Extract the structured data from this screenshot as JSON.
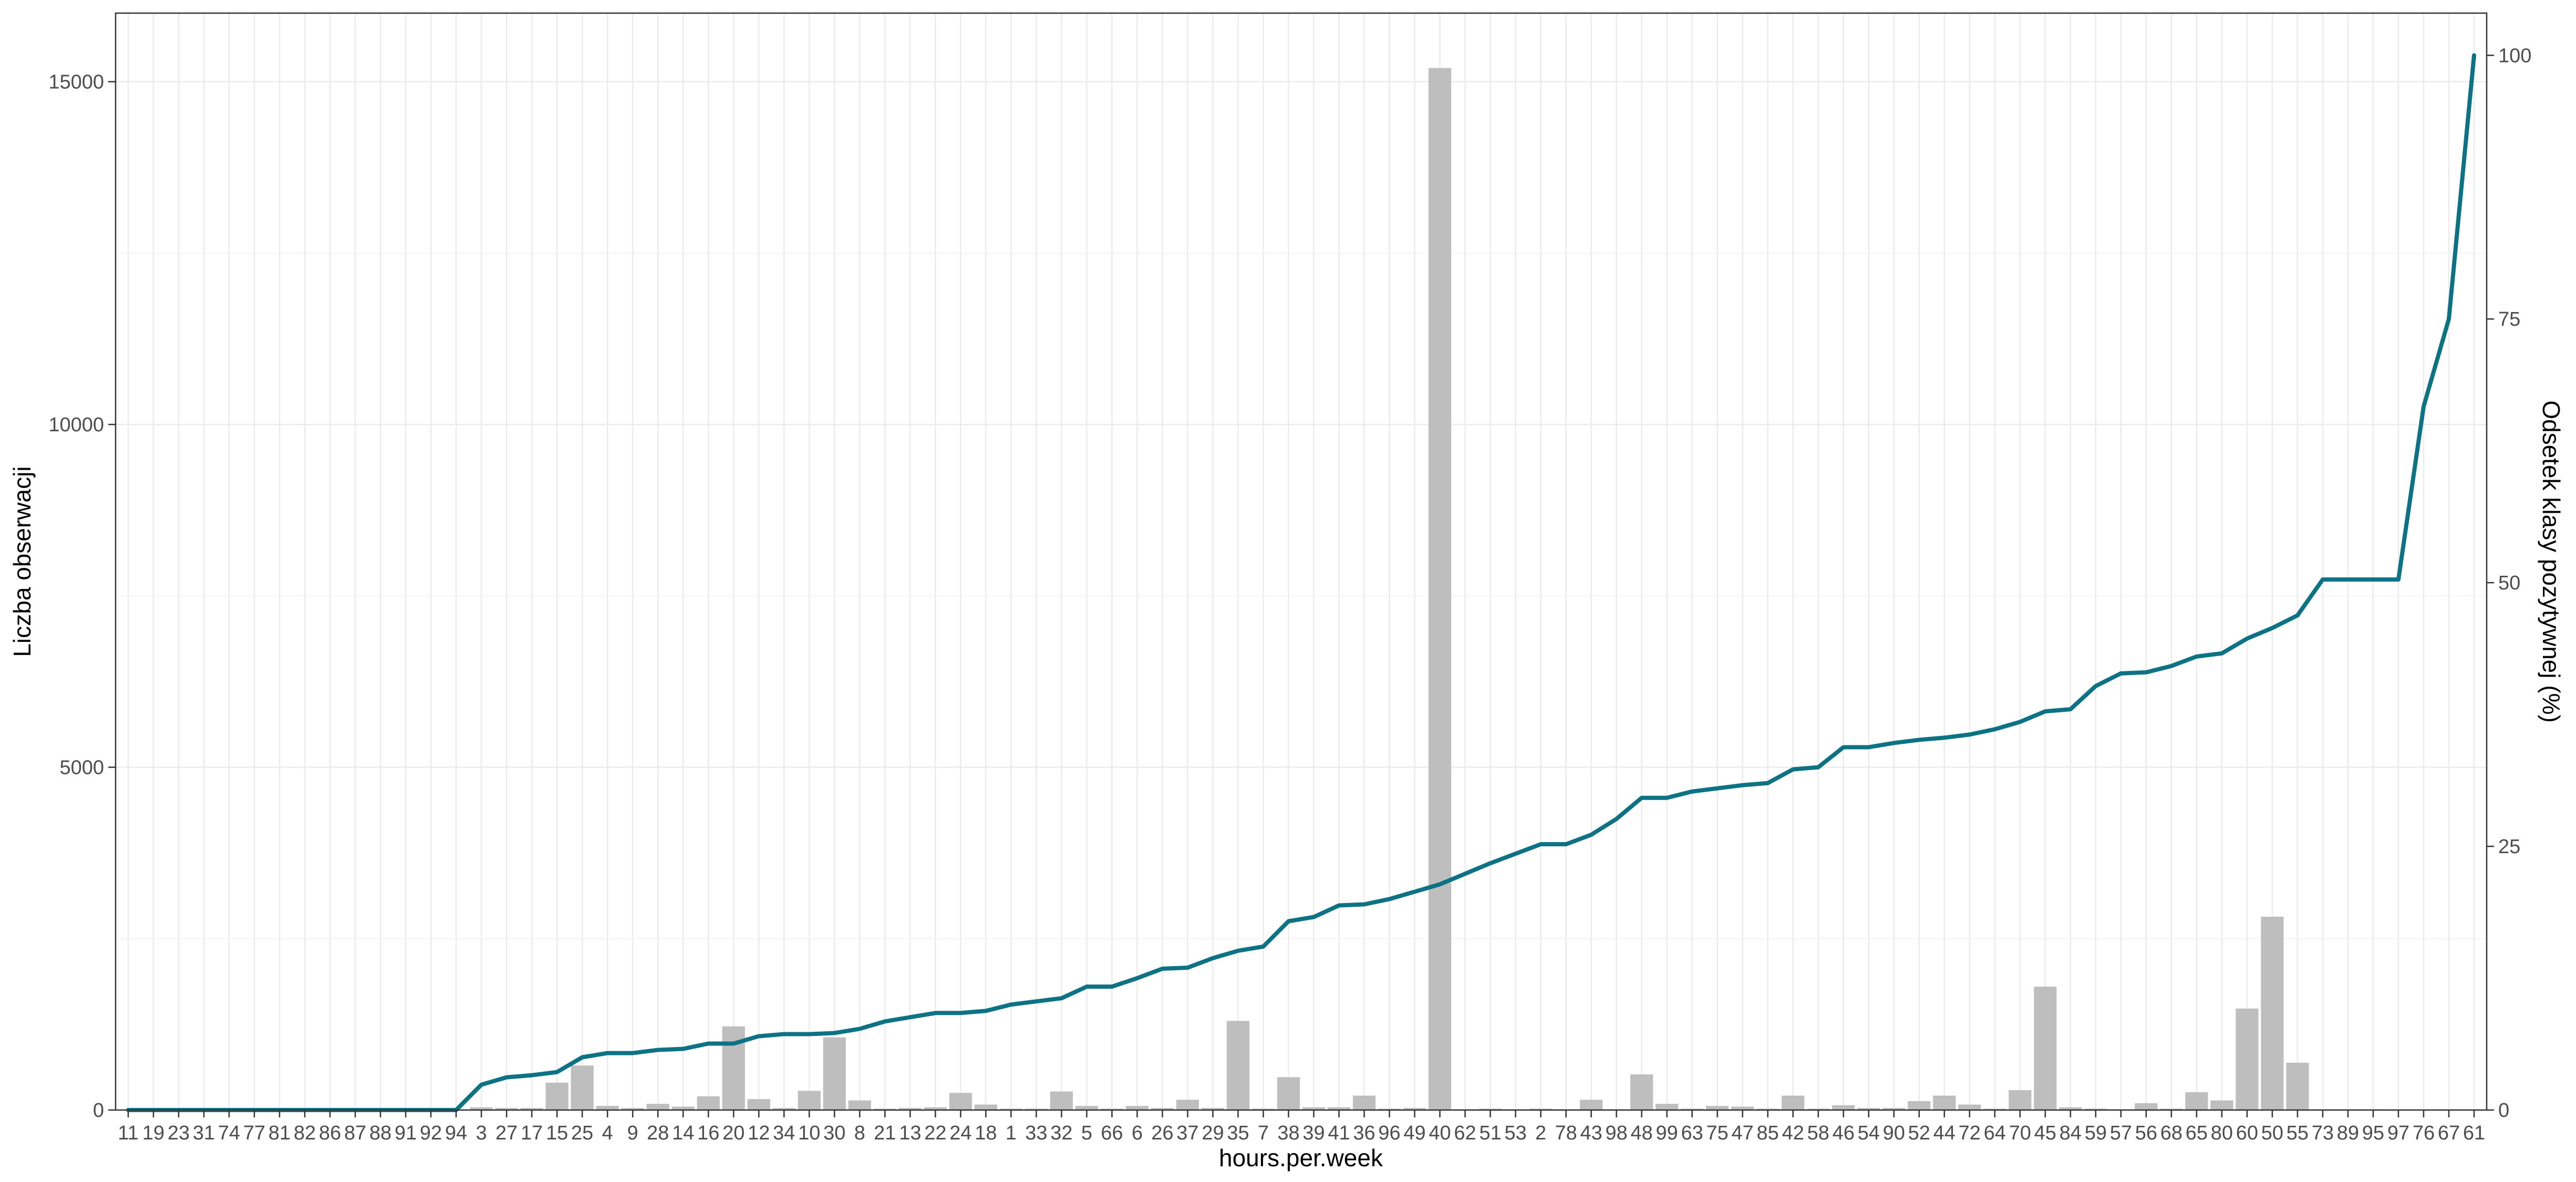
{
  "chart_data": {
    "type": "bar",
    "xlabel": "hours.per.week",
    "ylabel_left": "Liczba obserwacji",
    "ylabel_right": "Odsetek klasy pozytywnej (%)",
    "ylim_left": [
      0,
      16000
    ],
    "ylim_right": [
      0,
      104
    ],
    "yticks_left": [
      0,
      5000,
      10000,
      15000
    ],
    "yticks_right": [
      0,
      25,
      50,
      75,
      100
    ],
    "grid": true,
    "colors": {
      "bars": "#bebebe",
      "line": "#0e7285"
    },
    "categories": [
      "11",
      "19",
      "23",
      "31",
      "74",
      "77",
      "81",
      "82",
      "86",
      "87",
      "88",
      "91",
      "92",
      "94",
      "3",
      "27",
      "17",
      "15",
      "25",
      "4",
      "9",
      "28",
      "14",
      "16",
      "20",
      "12",
      "34",
      "10",
      "30",
      "8",
      "21",
      "13",
      "22",
      "24",
      "18",
      "1",
      "33",
      "32",
      "5",
      "66",
      "6",
      "26",
      "37",
      "29",
      "35",
      "7",
      "38",
      "39",
      "41",
      "36",
      "96",
      "49",
      "40",
      "62",
      "51",
      "53",
      "2",
      "78",
      "43",
      "98",
      "48",
      "99",
      "63",
      "75",
      "47",
      "85",
      "42",
      "58",
      "46",
      "54",
      "90",
      "52",
      "44",
      "72",
      "64",
      "70",
      "45",
      "84",
      "59",
      "57",
      "56",
      "68",
      "65",
      "80",
      "60",
      "50",
      "55",
      "73",
      "89",
      "95",
      "97",
      "76",
      "67",
      "61"
    ],
    "series": [
      {
        "type": "bar",
        "axis": "left",
        "values": [
          1,
          1,
          1,
          1,
          1,
          1,
          1,
          1,
          1,
          1,
          1,
          1,
          1,
          1,
          40,
          30,
          30,
          400,
          650,
          60,
          30,
          90,
          50,
          200,
          1220,
          160,
          30,
          280,
          1060,
          140,
          20,
          30,
          40,
          250,
          80,
          20,
          20,
          270,
          60,
          20,
          60,
          30,
          150,
          30,
          1300,
          20,
          480,
          40,
          40,
          210,
          20,
          30,
          15200,
          10,
          20,
          10,
          20,
          10,
          150,
          10,
          520,
          90,
          20,
          60,
          50,
          20,
          210,
          20,
          70,
          30,
          30,
          130,
          210,
          80,
          20,
          290,
          1800,
          40,
          20,
          10,
          100,
          20,
          260,
          140,
          1480,
          2820,
          690,
          10,
          10,
          10,
          5,
          5,
          5,
          5
        ]
      },
      {
        "type": "line",
        "axis": "right",
        "values": [
          0,
          0,
          0,
          0,
          0,
          0,
          0,
          0,
          0,
          0,
          0,
          0,
          0,
          0,
          2.4,
          3.1,
          3.3,
          3.6,
          5.0,
          5.4,
          5.4,
          5.7,
          5.8,
          6.3,
          6.3,
          7.0,
          7.2,
          7.2,
          7.3,
          7.7,
          8.4,
          8.8,
          9.2,
          9.2,
          9.4,
          10.0,
          10.3,
          10.6,
          11.7,
          11.7,
          12.5,
          13.4,
          13.5,
          14.4,
          15.1,
          15.5,
          17.9,
          18.3,
          19.4,
          19.5,
          20.0,
          20.7,
          21.4,
          22.4,
          23.4,
          24.3,
          25.2,
          25.2,
          26.1,
          27.6,
          29.6,
          29.6,
          30.2,
          30.5,
          30.8,
          31.0,
          32.3,
          32.5,
          34.4,
          34.4,
          34.8,
          35.1,
          35.3,
          35.6,
          36.1,
          36.8,
          37.8,
          38.0,
          40.2,
          41.4,
          41.5,
          42.1,
          43.0,
          43.3,
          44.7,
          45.7,
          46.9,
          50.3,
          50.3,
          50.3,
          50.3,
          66.7,
          75.0,
          100
        ]
      }
    ]
  }
}
